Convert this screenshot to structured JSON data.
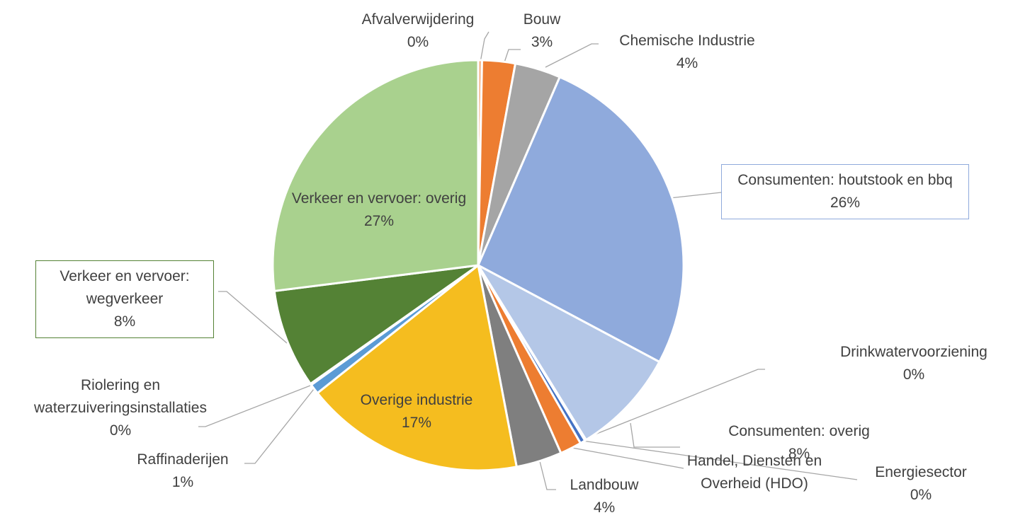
{
  "chart_data": {
    "type": "pie",
    "categories": [
      "Afvalverwijdering",
      "Bouw",
      "Chemische Industrie",
      "Consumenten: houtstook en bbq",
      "Consumenten: overig",
      "Drinkwatervoorziening",
      "Energiesector",
      "Handel, Diensten en Overheid (HDO)",
      "Landbouw",
      "Overige industrie",
      "Raffinaderijen",
      "Riolering en waterzuiveringsinstallaties",
      "Verkeer en vervoer: wegverkeer",
      "Verkeer en vervoer: overig"
    ],
    "values": [
      0.3,
      2.6,
      3.6,
      26.3,
      8.4,
      0.1,
      0.4,
      1.7,
      3.6,
      17.3,
      0.8,
      0.1,
      7.8,
      27.0
    ],
    "value_labels": [
      "0%",
      "3%",
      "4%",
      "26%",
      "8%",
      "0%",
      "0%",
      null,
      "4%",
      "17%",
      "1%",
      "0%",
      "8%",
      "27%"
    ],
    "colors": [
      "#f4b183",
      "#ed7d31",
      "#a5a5a5",
      "#8faadc",
      "#b4c7e7",
      "#2e75b6",
      "#4472c4",
      "#ed7d31",
      "#7f7f7f",
      "#f5bd1f",
      "#5b9bd5",
      "#9dc3e6",
      "#548235",
      "#a9d18e"
    ]
  }
}
